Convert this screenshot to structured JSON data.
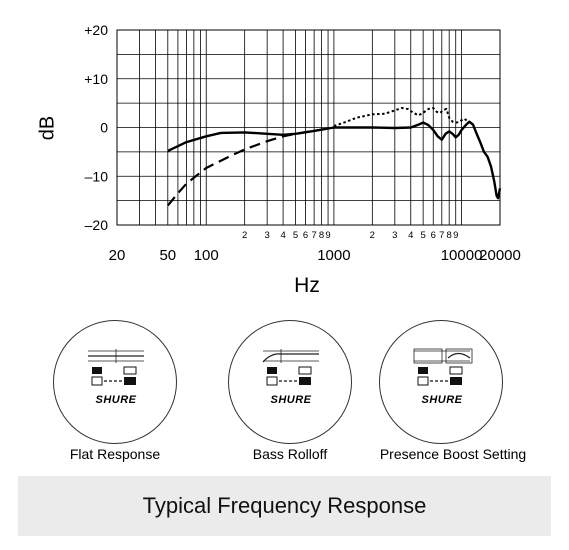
{
  "chart_data": {
    "type": "line",
    "title": "",
    "xlabel": "Hz",
    "ylabel": "dB",
    "x_scale": "log",
    "xlim": [
      20,
      20000
    ],
    "ylim": [
      -20,
      20
    ],
    "grid": true,
    "y_ticks": [
      {
        "value": 20,
        "label": "+20"
      },
      {
        "value": 10,
        "label": "+10"
      },
      {
        "value": 0,
        "label": "0"
      },
      {
        "value": -10,
        "label": "–10"
      },
      {
        "value": -20,
        "label": "–20"
      }
    ],
    "x_major_ticks": [
      {
        "value": 20,
        "label": "20"
      },
      {
        "value": 50,
        "label": "50"
      },
      {
        "value": 100,
        "label": "100"
      },
      {
        "value": 1000,
        "label": "1000"
      },
      {
        "value": 10000,
        "label": "10000"
      },
      {
        "value": 20000,
        "label": "20000"
      }
    ],
    "x_minor_ticks": [
      {
        "value": 200,
        "label": "2"
      },
      {
        "value": 300,
        "label": "3"
      },
      {
        "value": 400,
        "label": "4"
      },
      {
        "value": 500,
        "label": "5"
      },
      {
        "value": 600,
        "label": "6"
      },
      {
        "value": 700,
        "label": "7"
      },
      {
        "value": 800,
        "label": "8"
      },
      {
        "value": 900,
        "label": "9"
      },
      {
        "value": 2000,
        "label": "2"
      },
      {
        "value": 3000,
        "label": "3"
      },
      {
        "value": 4000,
        "label": "4"
      },
      {
        "value": 5000,
        "label": "5"
      },
      {
        "value": 6000,
        "label": "6"
      },
      {
        "value": 7000,
        "label": "7"
      },
      {
        "value": 8000,
        "label": "8"
      },
      {
        "value": 9000,
        "label": "9"
      }
    ],
    "series": [
      {
        "style": "solid",
        "points": [
          [
            50,
            -4.8
          ],
          [
            70,
            -3
          ],
          [
            100,
            -1.8
          ],
          [
            130,
            -1.1
          ],
          [
            200,
            -1
          ],
          [
            300,
            -1.3
          ],
          [
            400,
            -1.5
          ],
          [
            500,
            -1.3
          ],
          [
            700,
            -0.7
          ],
          [
            1000,
            0
          ],
          [
            2000,
            0
          ],
          [
            3000,
            -0.1
          ],
          [
            4000,
            0
          ],
          [
            4600,
            0.6
          ],
          [
            5000,
            1
          ],
          [
            5500,
            0.5
          ],
          [
            6000,
            -0.5
          ],
          [
            6500,
            -1.8
          ],
          [
            7000,
            -2.5
          ],
          [
            7500,
            -1.3
          ],
          [
            8000,
            -0.8
          ],
          [
            8500,
            -1.3
          ],
          [
            9000,
            -2
          ],
          [
            9500,
            -1.5
          ],
          [
            10000,
            -0.5
          ],
          [
            10800,
            0.5
          ],
          [
            11500,
            1.2
          ],
          [
            12300,
            0.6
          ],
          [
            13000,
            -1
          ],
          [
            14000,
            -3
          ],
          [
            15000,
            -5
          ],
          [
            16000,
            -6
          ],
          [
            17000,
            -8
          ],
          [
            18000,
            -11
          ],
          [
            18800,
            -14
          ],
          [
            19300,
            -14.5
          ],
          [
            20000,
            -12.5
          ]
        ]
      },
      {
        "style": "dotted",
        "points": [
          [
            1000,
            0.3
          ],
          [
            1200,
            1
          ],
          [
            1500,
            2
          ],
          [
            2000,
            2.7
          ],
          [
            2500,
            2.8
          ],
          [
            3000,
            3.5
          ],
          [
            3400,
            4
          ],
          [
            3800,
            3.8
          ],
          [
            4200,
            3
          ],
          [
            4600,
            2.5
          ],
          [
            5000,
            3
          ],
          [
            5500,
            3.8
          ],
          [
            6000,
            4
          ],
          [
            6400,
            3.2
          ],
          [
            6800,
            3
          ],
          [
            7200,
            3.6
          ],
          [
            7600,
            3.8
          ],
          [
            8000,
            2
          ],
          [
            8500,
            1.2
          ],
          [
            9000,
            1
          ],
          [
            9500,
            1.1
          ],
          [
            10000,
            1.5
          ],
          [
            10500,
            1.8
          ],
          [
            11000,
            1.4
          ],
          [
            11500,
            1.2
          ],
          [
            12300,
            0.6
          ]
        ]
      },
      {
        "style": "dashed",
        "points": [
          [
            50,
            -16
          ],
          [
            60,
            -13.5
          ],
          [
            70,
            -11.5
          ],
          [
            100,
            -8.3
          ],
          [
            150,
            -6
          ],
          [
            200,
            -4.5
          ],
          [
            300,
            -2.8
          ],
          [
            400,
            -1.8
          ],
          [
            500,
            -1.3
          ],
          [
            700,
            -0.7
          ],
          [
            1000,
            0
          ]
        ]
      }
    ]
  },
  "settings": [
    {
      "caption": "Flat Response",
      "brand": "SHURE",
      "curve": "flat"
    },
    {
      "caption": "Bass Rolloff",
      "brand": "SHURE",
      "curve": "rolloff"
    },
    {
      "caption": "Presence Boost Setting",
      "brand": "SHURE",
      "curve": "presence"
    }
  ],
  "footer": {
    "title": "Typical Frequency Response"
  }
}
